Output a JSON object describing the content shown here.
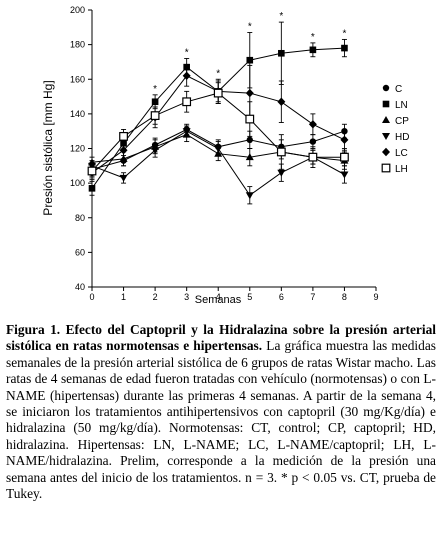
{
  "chart_data": {
    "type": "line",
    "title": "",
    "xlabel": "Semanas",
    "ylabel": "Presión sistólica [mm Hg]",
    "xlim": [
      0,
      9
    ],
    "ylim": [
      40,
      200
    ],
    "xticks": [
      "0",
      "1",
      "2",
      "3",
      "4",
      "5",
      "6",
      "7",
      "8",
      "9"
    ],
    "yticks": [
      "40",
      "60",
      "80",
      "100",
      "120",
      "140",
      "160",
      "180",
      "200"
    ],
    "grid": false,
    "legend": "right",
    "significance_marker": "*",
    "significant_weeks": [
      2,
      3,
      4,
      5,
      6,
      7,
      8
    ],
    "series": [
      {
        "name": "C",
        "marker": "circle",
        "x": [
          0,
          1,
          2,
          3,
          4,
          5,
          6,
          7,
          8
        ],
        "y": [
          108,
          113,
          122,
          131,
          121,
          125,
          121,
          124,
          130
        ],
        "err": [
          4,
          3,
          4,
          3,
          4,
          5,
          4,
          4,
          4
        ]
      },
      {
        "name": "LN",
        "marker": "square",
        "x": [
          0,
          1,
          2,
          3,
          4,
          5,
          6,
          7,
          8
        ],
        "y": [
          97,
          123,
          147,
          167,
          153,
          171,
          175,
          177,
          178
        ],
        "err": [
          4,
          4,
          4,
          5,
          6,
          16,
          18,
          4,
          5
        ]
      },
      {
        "name": "CP",
        "marker": "triangle-up",
        "x": [
          0,
          1,
          2,
          3,
          4,
          5,
          6,
          7,
          8
        ],
        "y": [
          112,
          114,
          121,
          128,
          117,
          115,
          118,
          115,
          113
        ],
        "err": [
          3,
          4,
          4,
          4,
          4,
          5,
          4,
          4,
          5
        ]
      },
      {
        "name": "HD",
        "marker": "triangle-down",
        "x": [
          0,
          1,
          2,
          3,
          4,
          5,
          6,
          7,
          8
        ],
        "y": [
          110,
          103,
          119,
          130,
          120,
          93,
          106,
          115,
          105
        ],
        "err": [
          3,
          3,
          4,
          3,
          4,
          5,
          5,
          4,
          5
        ]
      },
      {
        "name": "LC",
        "marker": "diamond",
        "x": [
          0,
          1,
          2,
          3,
          4,
          5,
          6,
          7,
          8
        ],
        "y": [
          106,
          119,
          138,
          162,
          153,
          152,
          147,
          134,
          125
        ],
        "err": [
          4,
          5,
          6,
          6,
          7,
          16,
          12,
          6,
          6
        ]
      },
      {
        "name": "LH",
        "marker": "open-square",
        "x": [
          0,
          1,
          2,
          3,
          4,
          5,
          6,
          7,
          8
        ],
        "y": [
          107,
          127,
          139,
          147,
          152,
          137,
          118,
          115,
          115
        ],
        "err": [
          4,
          4,
          5,
          6,
          6,
          10,
          10,
          6,
          5
        ]
      }
    ]
  },
  "caption": {
    "title": "Figura 1. Efecto del Captopril y la Hidralazina sobre la presión arterial sistólica en ratas normotensas e hipertensas.",
    "body": " La gráfica muestra las medidas semanales de la presión arterial sistólica de 6 grupos de ratas Wistar macho. Las ratas de 4 semanas de edad fueron tratadas con vehículo (normotensas) o con L-NAME (hipertensas) durante las primeras 4 semanas. A partir de la semana 4, se iniciaron los tratamientos antihipertensivos con captopril (30 mg/Kg/día) e hidralazina (50 mg/kg/día). Normotensas: CT, control; CP, captopril; HD, hidralazina. Hipertensas: LN, L-NAME; LC, L-NAME/captopril; LH, L-NAME/hidralazina. Prelim, corresponde a la medición de la presión una semana antes del inicio de los tratamientos. n = 3. * p < 0.05 vs. CT, prueba de Tukey."
  }
}
